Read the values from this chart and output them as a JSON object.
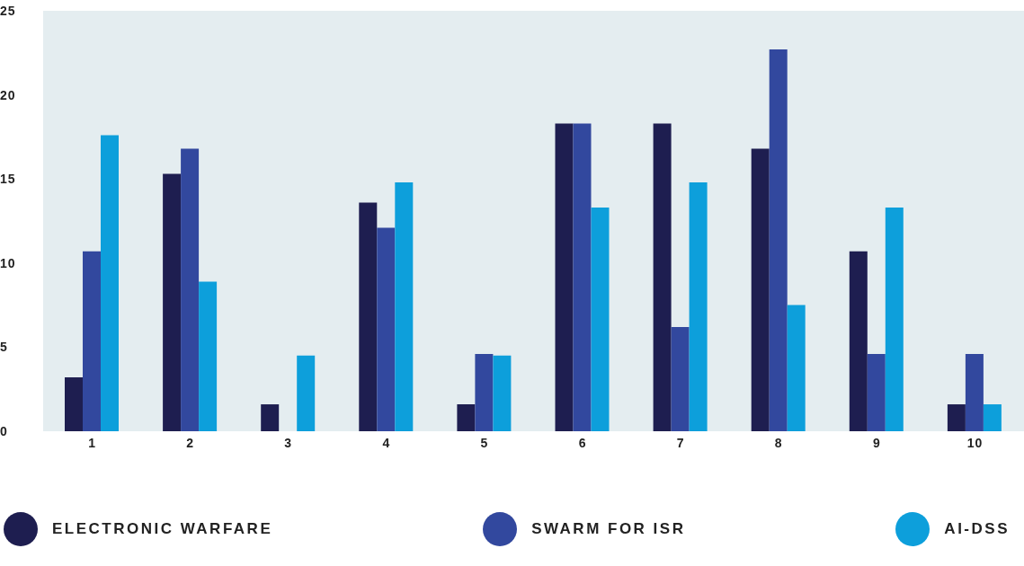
{
  "chart_data": {
    "type": "bar",
    "categories": [
      "1",
      "2",
      "3",
      "4",
      "5",
      "6",
      "7",
      "8",
      "9",
      "10"
    ],
    "series": [
      {
        "name": "ELECTRONIC WARFARE",
        "color": "#1e1e50",
        "values": [
          3.2,
          15.3,
          1.6,
          13.6,
          1.6,
          18.3,
          18.3,
          16.8,
          10.7,
          1.6
        ]
      },
      {
        "name": "SWARM FOR ISR",
        "color": "#32489e",
        "values": [
          10.7,
          16.8,
          0,
          12.1,
          4.6,
          18.3,
          6.2,
          22.7,
          4.6,
          4.6
        ]
      },
      {
        "name": "AI-DSS",
        "color": "#0d9fdb",
        "values": [
          17.6,
          8.9,
          4.5,
          14.8,
          4.5,
          13.3,
          14.8,
          7.5,
          13.3,
          1.6
        ]
      }
    ],
    "ylim": [
      0,
      25
    ],
    "yticks": [
      0,
      5,
      10,
      15,
      20,
      25
    ],
    "legend": "bottom"
  }
}
